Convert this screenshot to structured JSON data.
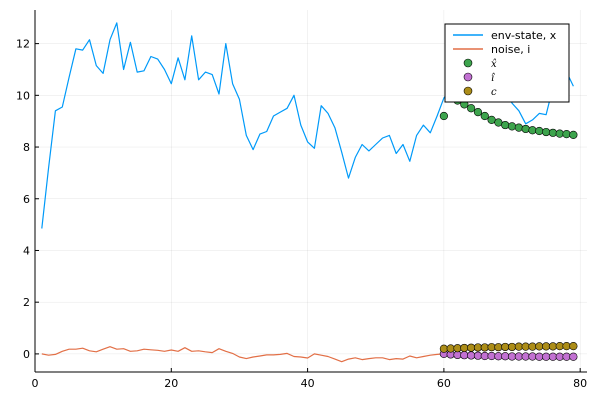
{
  "chart_data": {
    "type": "line",
    "grid": true,
    "legend_position": "top-right",
    "xlim": [
      0,
      81
    ],
    "ylim": [
      -0.7,
      13.3
    ],
    "x_ticks": [
      0,
      20,
      40,
      60,
      80
    ],
    "y_ticks": [
      0,
      2,
      4,
      6,
      8,
      10,
      12
    ],
    "x_tick_labels": [
      "0",
      "20",
      "40",
      "60",
      "80"
    ],
    "y_tick_labels": [
      "0",
      "2",
      "4",
      "6",
      "8",
      "10",
      "12"
    ],
    "series": [
      {
        "name": "env-state, x",
        "kind": "line",
        "color": "#009af9",
        "x": [
          1,
          2,
          3,
          4,
          5,
          6,
          7,
          8,
          9,
          10,
          11,
          12,
          13,
          14,
          15,
          16,
          17,
          18,
          19,
          20,
          21,
          22,
          23,
          24,
          25,
          26,
          27,
          28,
          29,
          30,
          31,
          32,
          33,
          34,
          35,
          36,
          37,
          38,
          39,
          40,
          41,
          42,
          43,
          44,
          45,
          46,
          47,
          48,
          49,
          50,
          51,
          52,
          53,
          54,
          55,
          56,
          57,
          58,
          59,
          60,
          61,
          62,
          63,
          64,
          65,
          66,
          67,
          68,
          69,
          70,
          71,
          72,
          73,
          74,
          75,
          76,
          77,
          78,
          79
        ],
        "y": [
          4.85,
          7.2,
          9.4,
          9.55,
          10.7,
          11.8,
          11.75,
          12.15,
          11.15,
          10.85,
          12.15,
          12.8,
          11.0,
          12.05,
          10.9,
          10.95,
          11.5,
          11.4,
          11.0,
          10.45,
          11.45,
          10.6,
          12.3,
          10.6,
          10.9,
          10.8,
          10.05,
          12.0,
          10.45,
          9.85,
          8.45,
          7.9,
          8.5,
          8.6,
          9.2,
          9.35,
          9.5,
          10.0,
          8.85,
          8.2,
          7.95,
          9.6,
          9.3,
          8.75,
          7.8,
          6.8,
          7.6,
          8.1,
          7.85,
          8.1,
          8.35,
          8.45,
          7.75,
          8.1,
          7.45,
          8.45,
          8.85,
          8.55,
          9.2,
          9.9,
          10.2,
          11.0,
          11.35,
          11.6,
          11.1,
          10.65,
          10.6,
          10.2,
          10.3,
          9.7,
          9.4,
          8.9,
          9.05,
          9.3,
          9.25,
          10.3,
          10.1,
          10.9,
          10.35
        ]
      },
      {
        "name": "noise, i",
        "kind": "line",
        "color": "#e26f46",
        "x": [
          1,
          2,
          3,
          4,
          5,
          6,
          7,
          8,
          9,
          10,
          11,
          12,
          13,
          14,
          15,
          16,
          17,
          18,
          19,
          20,
          21,
          22,
          23,
          24,
          25,
          26,
          27,
          28,
          29,
          30,
          31,
          32,
          33,
          34,
          35,
          36,
          37,
          38,
          39,
          40,
          41,
          42,
          43,
          44,
          45,
          46,
          47,
          48,
          49,
          50,
          51,
          52,
          53,
          54,
          55,
          56,
          57,
          58,
          59,
          60
        ],
        "y": [
          0.0,
          -0.05,
          -0.02,
          0.1,
          0.18,
          0.18,
          0.22,
          0.12,
          0.08,
          0.18,
          0.28,
          0.18,
          0.2,
          0.1,
          0.12,
          0.18,
          0.16,
          0.14,
          0.1,
          0.15,
          0.1,
          0.24,
          0.1,
          0.12,
          0.08,
          0.05,
          0.2,
          0.1,
          0.02,
          -0.12,
          -0.18,
          -0.12,
          -0.08,
          -0.04,
          -0.04,
          -0.02,
          0.02,
          -0.1,
          -0.12,
          -0.16,
          0.0,
          -0.05,
          -0.1,
          -0.2,
          -0.3,
          -0.2,
          -0.15,
          -0.22,
          -0.18,
          -0.15,
          -0.15,
          -0.22,
          -0.18,
          -0.2,
          -0.08,
          -0.15,
          -0.1,
          -0.05,
          -0.02,
          0.0
        ]
      },
      {
        "name": "x̂",
        "legend_math": "x̂",
        "kind": "scatter",
        "color": "#3da44d",
        "x": [
          60,
          61,
          62,
          63,
          64,
          65,
          66,
          67,
          68,
          69,
          70,
          71,
          72,
          73,
          74,
          75,
          76,
          77,
          78,
          79
        ],
        "y": [
          9.2,
          9.9,
          9.8,
          9.65,
          9.5,
          9.35,
          9.2,
          9.05,
          8.95,
          8.85,
          8.8,
          8.75,
          8.7,
          8.65,
          8.62,
          8.58,
          8.55,
          8.52,
          8.5,
          8.47
        ]
      },
      {
        "name": "î",
        "legend_math": "î",
        "kind": "scatter",
        "color": "#c271d2",
        "x": [
          60,
          61,
          62,
          63,
          64,
          65,
          66,
          67,
          68,
          69,
          70,
          71,
          72,
          73,
          74,
          75,
          76,
          77,
          78,
          79
        ],
        "y": [
          0.0,
          -0.02,
          -0.04,
          -0.05,
          -0.06,
          -0.07,
          -0.08,
          -0.08,
          -0.09,
          -0.09,
          -0.1,
          -0.1,
          -0.1,
          -0.1,
          -0.11,
          -0.11,
          -0.11,
          -0.11,
          -0.11,
          -0.11
        ]
      },
      {
        "name": "c",
        "legend_math": "c",
        "kind": "scatter",
        "color": "#ac8d18",
        "x": [
          60,
          61,
          62,
          63,
          64,
          65,
          66,
          67,
          68,
          69,
          70,
          71,
          72,
          73,
          74,
          75,
          76,
          77,
          78,
          79
        ],
        "y": [
          0.2,
          0.21,
          0.22,
          0.23,
          0.24,
          0.25,
          0.25,
          0.26,
          0.26,
          0.27,
          0.27,
          0.28,
          0.28,
          0.28,
          0.29,
          0.29,
          0.29,
          0.3,
          0.3,
          0.3
        ]
      }
    ]
  }
}
